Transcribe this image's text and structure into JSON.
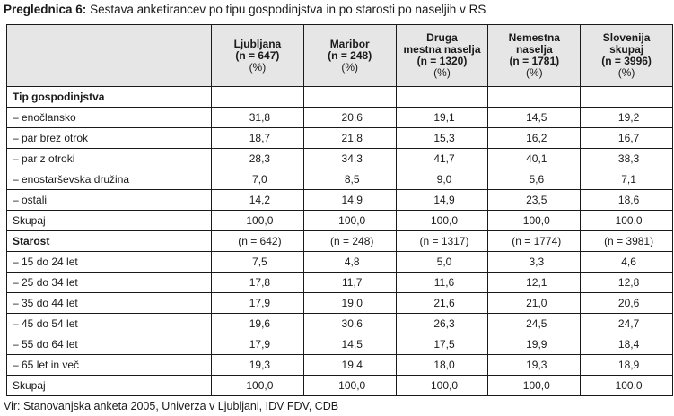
{
  "caption": {
    "prefix": "Preglednica 6:",
    "text": "Sestava anketirancev po tipu gospodinjstva in po starosti po naseljih v RS"
  },
  "columns": [
    {
      "lines": [
        "Ljubljana",
        "(n = 647)"
      ],
      "pct": "(%)"
    },
    {
      "lines": [
        "Maribor",
        "(n = 248)"
      ],
      "pct": "(%)"
    },
    {
      "lines": [
        "Druga",
        "mestna naselja",
        "(n = 1320)"
      ],
      "pct": "(%)"
    },
    {
      "lines": [
        "Nemestna",
        "naselja",
        "(n = 1781)"
      ],
      "pct": "(%)"
    },
    {
      "lines": [
        "Slovenija",
        "skupaj",
        "(n = 3996)"
      ],
      "pct": "(%)"
    }
  ],
  "rows": [
    {
      "label": "Tip gospodinjstva",
      "section": true,
      "values": [
        "",
        "",
        "",
        "",
        ""
      ]
    },
    {
      "label": "– enočlansko",
      "values": [
        "31,8",
        "20,6",
        "19,1",
        "14,5",
        "19,2"
      ]
    },
    {
      "label": "– par brez otrok",
      "values": [
        "18,7",
        "21,8",
        "15,3",
        "16,2",
        "16,7"
      ]
    },
    {
      "label": "– par z otroki",
      "values": [
        "28,3",
        "34,3",
        "41,7",
        "40,1",
        "38,3"
      ]
    },
    {
      "label": "– enostarševska družina",
      "values": [
        "7,0",
        "8,5",
        "9,0",
        "5,6",
        "7,1"
      ]
    },
    {
      "label": "– ostali",
      "values": [
        "14,2",
        "14,9",
        "14,9",
        "23,5",
        "18,6"
      ]
    },
    {
      "label": "Skupaj",
      "values": [
        "100,0",
        "100,0",
        "100,0",
        "100,0",
        "100,0"
      ]
    },
    {
      "label": "Starost",
      "section": true,
      "values": [
        "(n = 642)",
        "(n = 248)",
        "(n = 1317)",
        "(n = 1774)",
        "(n = 3981)"
      ]
    },
    {
      "label": "– 15 do 24 let",
      "values": [
        "7,5",
        "4,8",
        "5,0",
        "3,3",
        "4,6"
      ]
    },
    {
      "label": "– 25 do 34 let",
      "values": [
        "17,8",
        "11,7",
        "11,6",
        "12,1",
        "12,8"
      ]
    },
    {
      "label": "– 35 do 44 let",
      "values": [
        "17,9",
        "19,0",
        "21,6",
        "21,0",
        "20,6"
      ]
    },
    {
      "label": "– 45 do 54 let",
      "values": [
        "19,6",
        "30,6",
        "26,3",
        "24,5",
        "24,7"
      ]
    },
    {
      "label": "– 55 do 64 let",
      "values": [
        "17,9",
        "14,5",
        "17,5",
        "19,9",
        "18,4"
      ]
    },
    {
      "label": "– 65 let in več",
      "values": [
        "19,3",
        "19,4",
        "18,0",
        "19,3",
        "18,9"
      ]
    },
    {
      "label": "Skupaj",
      "values": [
        "100,0",
        "100,0",
        "100,0",
        "100,0",
        "100,0"
      ]
    }
  ],
  "source": "Vir: Stanovanjska anketa 2005, Univerza v Ljubljani, IDV FDV, CDB",
  "colors": {
    "header_bg": "#e6e6e6",
    "border": "#1a1a1a",
    "text": "#1a1a1a"
  }
}
